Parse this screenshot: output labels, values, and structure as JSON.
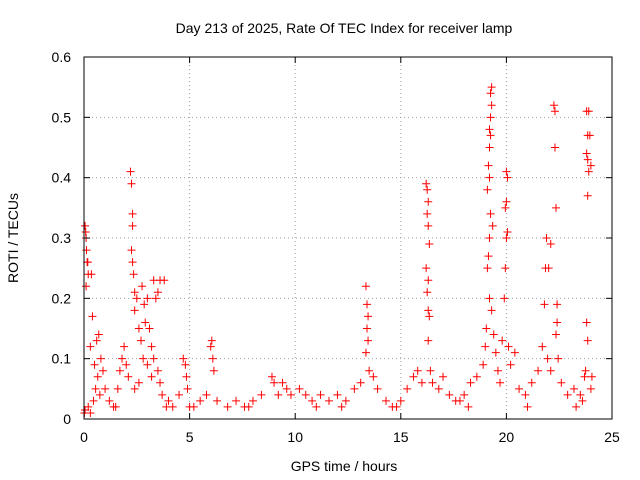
{
  "chart_data": {
    "type": "scatter",
    "title": "Day 213 of 2025, Rate Of TEC Index for receiver lamp",
    "xlabel": "GPS time / hours",
    "ylabel": "ROTI / TECUs",
    "xlim": [
      0,
      25
    ],
    "ylim": [
      0,
      0.6
    ],
    "xticks": [
      0,
      5,
      10,
      15,
      20,
      25
    ],
    "yticks": [
      0,
      0.1,
      0.2,
      0.3,
      0.4,
      0.5,
      0.6
    ],
    "xtick_labels": [
      "0",
      "5",
      "10",
      "15",
      "20",
      "25"
    ],
    "ytick_labels": [
      "0",
      "0.1",
      "0.2",
      "0.3",
      "0.4",
      "0.5",
      "0.6"
    ],
    "grid": true,
    "marker": "plus",
    "color": "#ff0000",
    "series": [
      {
        "name": "ROTI",
        "points": [
          [
            0.05,
            0.32
          ],
          [
            0.08,
            0.31
          ],
          [
            0.1,
            0.3
          ],
          [
            0.12,
            0.28
          ],
          [
            0.15,
            0.26
          ],
          [
            0.18,
            0.26
          ],
          [
            0.1,
            0.22
          ],
          [
            0.2,
            0.24
          ],
          [
            0.35,
            0.24
          ],
          [
            0.4,
            0.17
          ],
          [
            0.3,
            0.12
          ],
          [
            0.5,
            0.09
          ],
          [
            0.6,
            0.13
          ],
          [
            0.7,
            0.14
          ],
          [
            0.8,
            0.1
          ],
          [
            0.9,
            0.08
          ],
          [
            0.65,
            0.07
          ],
          [
            0.55,
            0.05
          ],
          [
            0.02,
            0.01
          ],
          [
            0.05,
            0.015
          ],
          [
            0.2,
            0.02
          ],
          [
            0.45,
            0.03
          ],
          [
            0.75,
            0.04
          ],
          [
            1.0,
            0.05
          ],
          [
            1.2,
            0.03
          ],
          [
            1.4,
            0.02
          ],
          [
            1.6,
            0.05
          ],
          [
            1.7,
            0.08
          ],
          [
            1.8,
            0.1
          ],
          [
            1.9,
            0.12
          ],
          [
            2.0,
            0.09
          ],
          [
            2.1,
            0.07
          ],
          [
            2.2,
            0.41
          ],
          [
            2.25,
            0.39
          ],
          [
            2.3,
            0.34
          ],
          [
            2.3,
            0.32
          ],
          [
            2.25,
            0.28
          ],
          [
            2.3,
            0.26
          ],
          [
            2.35,
            0.24
          ],
          [
            2.4,
            0.21
          ],
          [
            2.5,
            0.2
          ],
          [
            2.4,
            0.18
          ],
          [
            2.6,
            0.15
          ],
          [
            2.7,
            0.13
          ],
          [
            2.8,
            0.1
          ],
          [
            2.9,
            0.16
          ],
          [
            3.0,
            0.2
          ],
          [
            2.75,
            0.22
          ],
          [
            2.85,
            0.19
          ],
          [
            3.1,
            0.15
          ],
          [
            3.2,
            0.12
          ],
          [
            3.3,
            0.1
          ],
          [
            3.4,
            0.2
          ],
          [
            3.5,
            0.21
          ],
          [
            3.3,
            0.23
          ],
          [
            3.6,
            0.23
          ],
          [
            3.8,
            0.23
          ],
          [
            3.5,
            0.08
          ],
          [
            3.6,
            0.06
          ],
          [
            3.7,
            0.04
          ],
          [
            2.6,
            0.06
          ],
          [
            2.4,
            0.05
          ],
          [
            3.0,
            0.09
          ],
          [
            3.2,
            0.07
          ],
          [
            4.0,
            0.03
          ],
          [
            4.2,
            0.02
          ],
          [
            4.5,
            0.04
          ],
          [
            4.7,
            0.1
          ],
          [
            4.8,
            0.09
          ],
          [
            4.85,
            0.07
          ],
          [
            4.9,
            0.05
          ],
          [
            5.2,
            0.02
          ],
          [
            5.5,
            0.03
          ],
          [
            5.8,
            0.04
          ],
          [
            6.0,
            0.12
          ],
          [
            6.05,
            0.13
          ],
          [
            6.1,
            0.1
          ],
          [
            6.15,
            0.08
          ],
          [
            6.3,
            0.03
          ],
          [
            6.8,
            0.02
          ],
          [
            7.2,
            0.03
          ],
          [
            7.6,
            0.02
          ],
          [
            8.0,
            0.03
          ],
          [
            8.4,
            0.04
          ],
          [
            8.9,
            0.07
          ],
          [
            9.0,
            0.06
          ],
          [
            9.2,
            0.04
          ],
          [
            9.6,
            0.05
          ],
          [
            9.4,
            0.06
          ],
          [
            9.8,
            0.04
          ],
          [
            10.2,
            0.05
          ],
          [
            10.5,
            0.04
          ],
          [
            10.8,
            0.03
          ],
          [
            11.2,
            0.04
          ],
          [
            11.6,
            0.03
          ],
          [
            12.0,
            0.04
          ],
          [
            12.4,
            0.03
          ],
          [
            12.8,
            0.05
          ],
          [
            13.1,
            0.06
          ],
          [
            13.35,
            0.22
          ],
          [
            13.4,
            0.19
          ],
          [
            13.45,
            0.17
          ],
          [
            13.4,
            0.15
          ],
          [
            13.45,
            0.13
          ],
          [
            13.35,
            0.11
          ],
          [
            13.5,
            0.08
          ],
          [
            13.7,
            0.07
          ],
          [
            13.9,
            0.05
          ],
          [
            14.3,
            0.03
          ],
          [
            14.6,
            0.02
          ],
          [
            15.0,
            0.03
          ],
          [
            15.3,
            0.05
          ],
          [
            15.6,
            0.07
          ],
          [
            15.8,
            0.08
          ],
          [
            16.0,
            0.06
          ],
          [
            16.2,
            0.39
          ],
          [
            16.25,
            0.38
          ],
          [
            16.3,
            0.36
          ],
          [
            16.25,
            0.34
          ],
          [
            16.3,
            0.32
          ],
          [
            16.35,
            0.29
          ],
          [
            16.2,
            0.25
          ],
          [
            16.3,
            0.23
          ],
          [
            16.25,
            0.21
          ],
          [
            16.3,
            0.18
          ],
          [
            16.35,
            0.17
          ],
          [
            16.3,
            0.13
          ],
          [
            16.4,
            0.08
          ],
          [
            16.5,
            0.06
          ],
          [
            16.8,
            0.05
          ],
          [
            17.0,
            0.07
          ],
          [
            17.3,
            0.04
          ],
          [
            17.6,
            0.03
          ],
          [
            18.0,
            0.04
          ],
          [
            18.3,
            0.06
          ],
          [
            18.6,
            0.07
          ],
          [
            18.9,
            0.09
          ],
          [
            19.0,
            0.12
          ],
          [
            19.05,
            0.15
          ],
          [
            19.1,
            0.25
          ],
          [
            19.15,
            0.27
          ],
          [
            19.2,
            0.3
          ],
          [
            19.25,
            0.34
          ],
          [
            19.1,
            0.38
          ],
          [
            19.2,
            0.4
          ],
          [
            19.15,
            0.42
          ],
          [
            19.2,
            0.45
          ],
          [
            19.25,
            0.47
          ],
          [
            19.2,
            0.48
          ],
          [
            19.25,
            0.5
          ],
          [
            19.3,
            0.52
          ],
          [
            19.25,
            0.54
          ],
          [
            19.3,
            0.55
          ],
          [
            19.2,
            0.2
          ],
          [
            19.3,
            0.18
          ],
          [
            19.4,
            0.14
          ],
          [
            19.5,
            0.11
          ],
          [
            19.6,
            0.08
          ],
          [
            19.7,
            0.06
          ],
          [
            19.35,
            0.32
          ],
          [
            19.8,
            0.13
          ],
          [
            19.9,
            0.2
          ],
          [
            19.95,
            0.25
          ],
          [
            20.0,
            0.3
          ],
          [
            20.05,
            0.31
          ],
          [
            19.95,
            0.35
          ],
          [
            20.0,
            0.36
          ],
          [
            20.05,
            0.4
          ],
          [
            20.0,
            0.41
          ],
          [
            20.1,
            0.12
          ],
          [
            20.2,
            0.09
          ],
          [
            20.4,
            0.11
          ],
          [
            20.6,
            0.05
          ],
          [
            20.9,
            0.04
          ],
          [
            21.2,
            0.06
          ],
          [
            21.5,
            0.08
          ],
          [
            21.7,
            0.12
          ],
          [
            21.8,
            0.19
          ],
          [
            21.85,
            0.25
          ],
          [
            21.9,
            0.3
          ],
          [
            22.0,
            0.25
          ],
          [
            22.1,
            0.29
          ],
          [
            21.95,
            0.1
          ],
          [
            22.1,
            0.08
          ],
          [
            22.25,
            0.52
          ],
          [
            22.3,
            0.51
          ],
          [
            22.3,
            0.45
          ],
          [
            22.35,
            0.35
          ],
          [
            22.4,
            0.19
          ],
          [
            22.4,
            0.16
          ],
          [
            22.35,
            0.14
          ],
          [
            22.45,
            0.1
          ],
          [
            22.6,
            0.06
          ],
          [
            22.9,
            0.04
          ],
          [
            23.2,
            0.05
          ],
          [
            23.5,
            0.04
          ],
          [
            23.7,
            0.07
          ],
          [
            23.75,
            0.08
          ],
          [
            23.8,
            0.16
          ],
          [
            23.85,
            0.13
          ],
          [
            23.8,
            0.51
          ],
          [
            23.85,
            0.47
          ],
          [
            23.8,
            0.44
          ],
          [
            23.85,
            0.43
          ],
          [
            23.9,
            0.41
          ],
          [
            23.85,
            0.37
          ],
          [
            23.9,
            0.51
          ],
          [
            23.95,
            0.47
          ],
          [
            24.0,
            0.42
          ],
          [
            24.05,
            0.07
          ],
          [
            24.0,
            0.05
          ],
          [
            23.6,
            0.03
          ],
          [
            23.3,
            0.02
          ],
          [
            21.0,
            0.02
          ],
          [
            18.2,
            0.02
          ],
          [
            17.8,
            0.03
          ],
          [
            14.8,
            0.02
          ],
          [
            12.2,
            0.02
          ],
          [
            11.0,
            0.02
          ],
          [
            7.8,
            0.02
          ],
          [
            5.0,
            0.02
          ],
          [
            3.9,
            0.02
          ],
          [
            1.5,
            0.02
          ],
          [
            0.3,
            0.01
          ]
        ]
      }
    ]
  }
}
